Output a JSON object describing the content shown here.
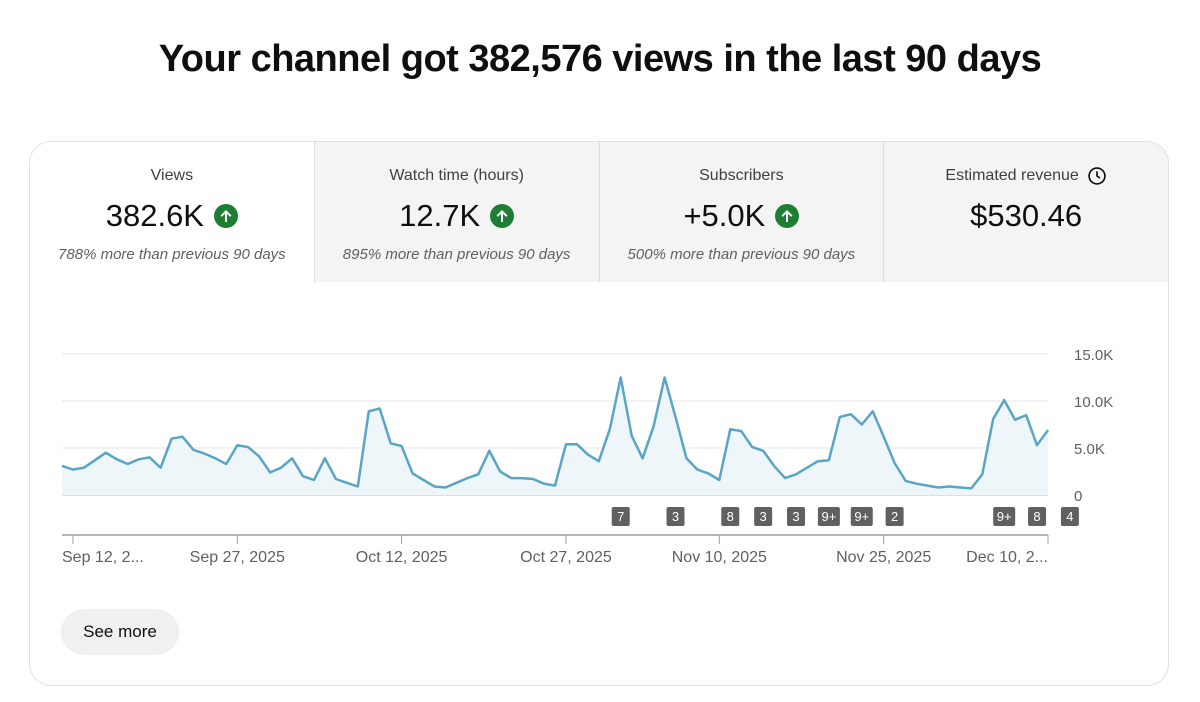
{
  "headline": "Your channel got 382,576 views in the last 90 days",
  "metrics": [
    {
      "label": "Views",
      "value": "382.6K",
      "trend": "up",
      "comparison": "788% more than previous 90 days"
    },
    {
      "label": "Watch time (hours)",
      "value": "12.7K",
      "trend": "up",
      "comparison": "895% more than previous 90 days"
    },
    {
      "label": "Subscribers",
      "value": "+5.0K",
      "trend": "up",
      "comparison": "500% more than previous 90 days"
    },
    {
      "label": "Estimated revenue",
      "value": "$530.46",
      "icon": "clock-icon"
    }
  ],
  "see_more_label": "See more",
  "colors": {
    "line": "#5aa5c6",
    "area": "#eef6fa",
    "trend_up": "#1e7e34",
    "marker": "#606060"
  },
  "chart_data": {
    "type": "area",
    "title": "",
    "xlabel": "",
    "ylabel": "",
    "ylim": [
      0,
      15000
    ],
    "y_ticks": [
      {
        "value": 0,
        "label": "0"
      },
      {
        "value": 5000,
        "label": "5.0K"
      },
      {
        "value": 10000,
        "label": "10.0K"
      },
      {
        "value": 15000,
        "label": "15.0K"
      }
    ],
    "x_start": "2025-09-11",
    "x_ticks": [
      {
        "date": "2025-09-12",
        "label": "Sep 12, 2..."
      },
      {
        "date": "2025-09-27",
        "label": "Sep 27, 2025"
      },
      {
        "date": "2025-10-12",
        "label": "Oct 12, 2025"
      },
      {
        "date": "2025-10-27",
        "label": "Oct 27, 2025"
      },
      {
        "date": "2025-11-10",
        "label": "Nov 10, 2025"
      },
      {
        "date": "2025-11-25",
        "label": "Nov 25, 2025"
      },
      {
        "date": "2025-12-10",
        "label": "Dec 10, 2..."
      }
    ],
    "series": [
      {
        "values": [
          3100,
          2700,
          2900,
          3700,
          4500,
          3800,
          3300,
          3800,
          4000,
          2900,
          6000,
          6200,
          4800,
          4400,
          3900,
          3300,
          5300,
          5100,
          4100,
          2400,
          2900,
          3900,
          2000,
          1600,
          3900,
          1700,
          1300,
          900,
          8900,
          9200,
          5500,
          5200,
          2300,
          1600,
          900,
          800,
          1300,
          1800,
          2200,
          4700,
          2500,
          1800,
          1800,
          1700,
          1200,
          1000,
          5400,
          5400,
          4300,
          3600,
          7000,
          12500,
          6300,
          3900,
          7300,
          12500,
          8300,
          3900,
          2700,
          2300,
          1600,
          7000,
          6800,
          5100,
          4700,
          3100,
          1800,
          2200,
          2900,
          3600,
          3700,
          8300,
          8600,
          7500,
          8900,
          6200,
          3400,
          1500,
          1200,
          1000,
          800,
          900,
          800,
          700,
          2200,
          8100,
          10100,
          8000,
          8500,
          5300,
          6900
        ]
      }
    ],
    "markers": [
      {
        "date": "2025-11-01",
        "label": "7"
      },
      {
        "date": "2025-11-06",
        "label": "3"
      },
      {
        "date": "2025-11-11",
        "label": "8"
      },
      {
        "date": "2025-11-14",
        "label": "3"
      },
      {
        "date": "2025-11-17",
        "label": "3"
      },
      {
        "date": "2025-11-20",
        "label": "9+"
      },
      {
        "date": "2025-11-23",
        "label": "9+"
      },
      {
        "date": "2025-11-26",
        "label": "2"
      },
      {
        "date": "2025-12-06",
        "label": "9+"
      },
      {
        "date": "2025-12-09",
        "label": "8"
      },
      {
        "date": "2025-12-12",
        "label": "4"
      }
    ],
    "grid": true,
    "legend": "none"
  }
}
